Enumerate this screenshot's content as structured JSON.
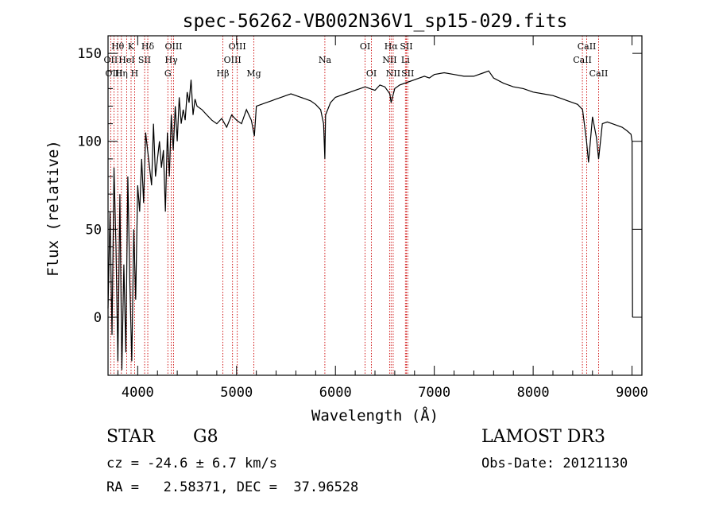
{
  "chart_data": {
    "type": "line",
    "title": "spec-56262-VB002N36V1_sp15-029.fits",
    "xlabel": "Wavelength (Å)",
    "ylabel": "Flux (relative)",
    "xlim": [
      3700,
      9100
    ],
    "ylim": [
      -33,
      160
    ],
    "xticks": [
      4000,
      5000,
      6000,
      7000,
      8000,
      9000
    ],
    "yticks": [
      0,
      50,
      100,
      150
    ],
    "grid": false,
    "line_color": "#000000",
    "marker_color": "#cc0000",
    "series": [
      {
        "x": [
          3700,
          3720,
          3740,
          3760,
          3780,
          3800,
          3820,
          3840,
          3860,
          3880,
          3900,
          3920,
          3940,
          3960,
          3980,
          4000,
          4020,
          4040,
          4060,
          4080,
          4100,
          4120,
          4140,
          4160,
          4180,
          4200,
          4220,
          4240,
          4260,
          4280,
          4300,
          4320,
          4340,
          4360,
          4380,
          4400,
          4420,
          4440,
          4460,
          4480,
          4500,
          4520,
          4540,
          4560,
          4580,
          4600,
          4650,
          4700,
          4750,
          4800,
          4850,
          4900,
          4950,
          5000,
          5050,
          5100,
          5150,
          5180,
          5200,
          5250,
          5300,
          5350,
          5400,
          5450,
          5500,
          5550,
          5600,
          5650,
          5700,
          5750,
          5800,
          5850,
          5880,
          5893,
          5900,
          5950,
          6000,
          6050,
          6100,
          6150,
          6200,
          6250,
          6300,
          6350,
          6400,
          6450,
          6500,
          6550,
          6563,
          6600,
          6650,
          6700,
          6750,
          6800,
          6850,
          6900,
          6950,
          7000,
          7100,
          7200,
          7300,
          7400,
          7500,
          7550,
          7600,
          7700,
          7800,
          7900,
          8000,
          8100,
          8200,
          8300,
          8400,
          8450,
          8500,
          8540,
          8560,
          8600,
          8640,
          8662,
          8700,
          8750,
          8800,
          8850,
          8900,
          8950,
          8990,
          9000,
          9005
        ],
        "values": [
          5,
          60,
          -10,
          85,
          40,
          -25,
          70,
          -30,
          30,
          -20,
          80,
          20,
          -25,
          50,
          10,
          75,
          60,
          90,
          65,
          105,
          95,
          85,
          75,
          110,
          80,
          90,
          100,
          85,
          95,
          60,
          105,
          80,
          115,
          95,
          120,
          100,
          125,
          110,
          118,
          112,
          128,
          122,
          135,
          115,
          124,
          120,
          118,
          115,
          112,
          110,
          113,
          108,
          115,
          112,
          110,
          118,
          112,
          103,
          120,
          121,
          122,
          123,
          124,
          125,
          126,
          127,
          126,
          125,
          124,
          123,
          121,
          118,
          110,
          90,
          115,
          122,
          125,
          126,
          127,
          128,
          129,
          130,
          131,
          130,
          129,
          132,
          131,
          127,
          122,
          130,
          132,
          133,
          134,
          135,
          136,
          137,
          136,
          138,
          139,
          138,
          137,
          137,
          139,
          140,
          136,
          133,
          131,
          130,
          128,
          127,
          126,
          124,
          122,
          121,
          118,
          100,
          88,
          114,
          102,
          90,
          110,
          111,
          110,
          109,
          108,
          106,
          104,
          100,
          0
        ]
      }
    ],
    "line_markers": [
      {
        "label": "Hθ",
        "wavelength": 3798,
        "row": 0
      },
      {
        "label": "OII",
        "wavelength": 3727,
        "row": 1
      },
      {
        "label": "OIII",
        "wavelength": 3760,
        "row": 2
      },
      {
        "label": "K",
        "wavelength": 3933,
        "row": 0
      },
      {
        "label": "HeI",
        "wavelength": 3889,
        "row": 1
      },
      {
        "label": "Hη",
        "wavelength": 3835,
        "row": 2
      },
      {
        "label": "H",
        "wavelength": 3969,
        "row": 2
      },
      {
        "label": "Hδ",
        "wavelength": 4102,
        "row": 0
      },
      {
        "label": "SII",
        "wavelength": 4070,
        "row": 1
      },
      {
        "label": "OIII",
        "wavelength": 4363,
        "row": 0
      },
      {
        "label": "Hγ",
        "wavelength": 4340,
        "row": 1
      },
      {
        "label": "G",
        "wavelength": 4305,
        "row": 2
      },
      {
        "label": "OIII",
        "wavelength": 5007,
        "row": 0
      },
      {
        "label": "OIII",
        "wavelength": 4959,
        "row": 1
      },
      {
        "label": "Hβ",
        "wavelength": 4861,
        "row": 2
      },
      {
        "label": "Mg",
        "wavelength": 5175,
        "row": 2
      },
      {
        "label": "Na",
        "wavelength": 5893,
        "row": 1
      },
      {
        "label": "OI",
        "wavelength": 6300,
        "row": 0
      },
      {
        "label": "OI",
        "wavelength": 6364,
        "row": 2
      },
      {
        "label": "Hα",
        "wavelength": 6563,
        "row": 0
      },
      {
        "label": "NII",
        "wavelength": 6548,
        "row": 1
      },
      {
        "label": "NII",
        "wavelength": 6584,
        "row": 2
      },
      {
        "label": "SII",
        "wavelength": 6717,
        "row": 0
      },
      {
        "label": "Li",
        "wavelength": 6708,
        "row": 1
      },
      {
        "label": "SII",
        "wavelength": 6731,
        "row": 2
      },
      {
        "label": "CaII",
        "wavelength": 8542,
        "row": 0
      },
      {
        "label": "CaII",
        "wavelength": 8498,
        "row": 1
      },
      {
        "label": "CaII",
        "wavelength": 8662,
        "row": 2
      }
    ]
  },
  "info": {
    "object_class": "STAR",
    "subclass": "G8",
    "cz": "cz = -24.6 ± 6.7 km/s",
    "coords": "RA =   2.58371, DEC =  37.96528",
    "survey": "LAMOST DR3",
    "obs_date": "Obs-Date: 20121130"
  }
}
